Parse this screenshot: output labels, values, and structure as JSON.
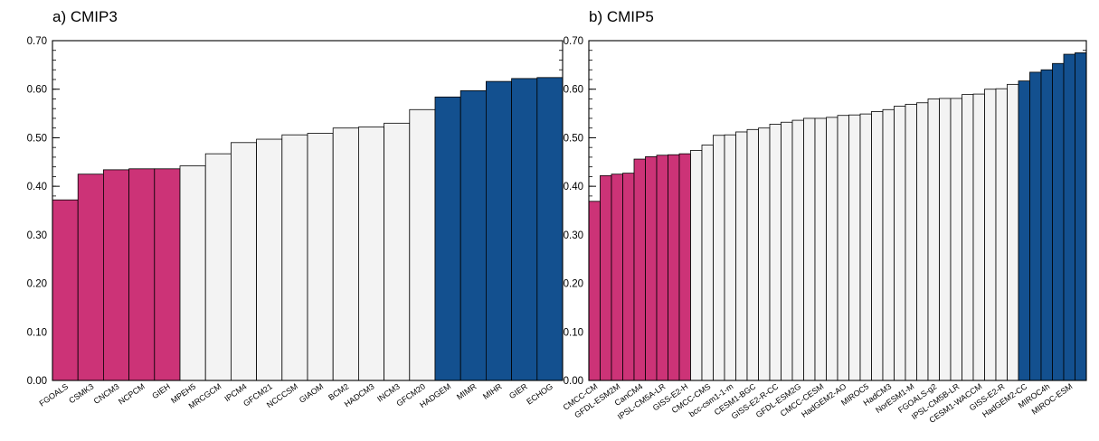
{
  "colors": {
    "low": "#CC3377",
    "mid": "#F3F3F3",
    "high": "#13508F",
    "edge": "#000000"
  },
  "chart_data": [
    {
      "type": "bar",
      "title": "a) CMIP3",
      "ylim": [
        0,
        0.7
      ],
      "yticks": [
        "0.00",
        "0.10",
        "0.20",
        "0.30",
        "0.40",
        "0.50",
        "0.60",
        "0.70"
      ],
      "grid": false,
      "categories": [
        "FGOALS",
        "CSMK3",
        "CNCM3",
        "NCPCM",
        "GIEH",
        "MPEH5",
        "MRCGCM",
        "IPCM4",
        "GFCM21",
        "NCCCSM",
        "GIAOM",
        "BCM2",
        "HADCM3",
        "INCM3",
        "GFCM20",
        "HADGEM",
        "MIMR",
        "MIHR",
        "GIER",
        "ECHOG"
      ],
      "values": [
        0.372,
        0.425,
        0.434,
        0.436,
        0.436,
        0.442,
        0.467,
        0.49,
        0.497,
        0.506,
        0.509,
        0.52,
        0.522,
        0.53,
        0.558,
        0.584,
        0.597,
        0.616,
        0.622,
        0.624
      ],
      "groups": [
        "low",
        "low",
        "low",
        "low",
        "low",
        "mid",
        "mid",
        "mid",
        "mid",
        "mid",
        "mid",
        "mid",
        "mid",
        "mid",
        "mid",
        "high",
        "high",
        "high",
        "high",
        "high"
      ]
    },
    {
      "type": "bar",
      "title": "b) CMIP5",
      "ylim": [
        0,
        0.7
      ],
      "yticks": [
        "0.00",
        "0.10",
        "0.20",
        "0.30",
        "0.40",
        "0.50",
        "0.60",
        "0.70"
      ],
      "grid": false,
      "categories": [
        "CMCC-CM",
        "",
        "GFDL-ESM2M",
        "",
        "CanCM4",
        "",
        "IPSL-CM5A-LR",
        "",
        "GISS-E2-H",
        "",
        "CMCC-CMS",
        "",
        "bcc-csm1-1-m",
        "",
        "CESM1-BGC",
        "",
        "GISS-E2-R-CC",
        "",
        "GFDL-ESM2G",
        "",
        "CMCC-CESM",
        "",
        "HadGEM2-AO",
        "",
        "MIROC5",
        "",
        "HadCM3",
        "",
        "NorESM1-M",
        "",
        "FGOALS-g2",
        "",
        "IPSL-CM5B-LR",
        "",
        "CESM1-WACCM",
        "",
        "GISS-E2-R",
        "",
        "HadGEM2-CC",
        "",
        "MIROC4h",
        "",
        "MIROC-ESM",
        ""
      ],
      "values": [
        0.369,
        0.422,
        0.425,
        0.427,
        0.456,
        0.461,
        0.464,
        0.465,
        0.467,
        0.474,
        0.485,
        0.505,
        0.506,
        0.512,
        0.517,
        0.52,
        0.528,
        0.532,
        0.536,
        0.54,
        0.54,
        0.542,
        0.546,
        0.547,
        0.549,
        0.554,
        0.558,
        0.565,
        0.569,
        0.572,
        0.58,
        0.581,
        0.581,
        0.589,
        0.59,
        0.6,
        0.601,
        0.61,
        0.617,
        0.635,
        0.64,
        0.653,
        0.672,
        0.675
      ],
      "groups": [
        "low",
        "low",
        "low",
        "low",
        "low",
        "low",
        "low",
        "low",
        "low",
        "mid",
        "mid",
        "mid",
        "mid",
        "mid",
        "mid",
        "mid",
        "mid",
        "mid",
        "mid",
        "mid",
        "mid",
        "mid",
        "mid",
        "mid",
        "mid",
        "mid",
        "mid",
        "mid",
        "mid",
        "mid",
        "mid",
        "mid",
        "mid",
        "mid",
        "mid",
        "mid",
        "mid",
        "mid",
        "high",
        "high",
        "high",
        "high",
        "high",
        "high"
      ]
    }
  ]
}
